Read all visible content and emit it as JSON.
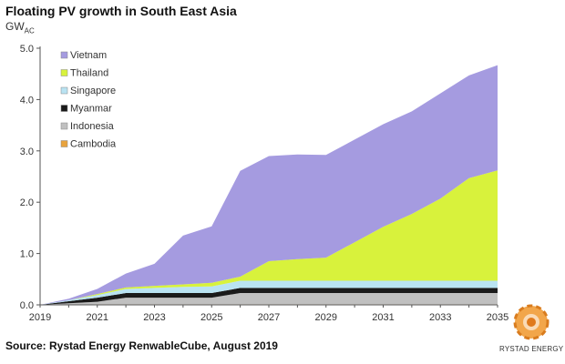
{
  "title": "Floating PV growth in South East Asia",
  "unit": {
    "main": "GW",
    "sub": "AC"
  },
  "source": "Source: Rystad Energy RenwableCube, August 2019",
  "brand": "RYSTAD ENERGY",
  "chart_data": {
    "type": "area",
    "stacked": true,
    "x": [
      2019,
      2020,
      2021,
      2022,
      2023,
      2024,
      2025,
      2026,
      2027,
      2028,
      2029,
      2030,
      2031,
      2032,
      2033,
      2034,
      2035
    ],
    "x_tick_labels": [
      "2019",
      "2021",
      "2023",
      "2025",
      "2027",
      "2029",
      "2031",
      "2033",
      "2035"
    ],
    "ylim": [
      0,
      5.0
    ],
    "y_ticks": [
      "0.0",
      "1.0",
      "2.0",
      "3.0",
      "4.0",
      "5.0"
    ],
    "grid": false,
    "legend_position": "top-left",
    "series": [
      {
        "name": "Cambodia",
        "color": "#E8A33D",
        "values": [
          0,
          0,
          0.01,
          0.01,
          0.01,
          0.01,
          0.01,
          0.01,
          0.01,
          0.01,
          0.01,
          0.01,
          0.01,
          0.01,
          0.01,
          0.01,
          0.01
        ]
      },
      {
        "name": "Indonesia",
        "color": "#C0C0C0",
        "values": [
          0,
          0.03,
          0.05,
          0.13,
          0.13,
          0.13,
          0.13,
          0.22,
          0.22,
          0.22,
          0.22,
          0.22,
          0.22,
          0.22,
          0.22,
          0.22,
          0.22
        ]
      },
      {
        "name": "Myanmar",
        "color": "#1A1A1A",
        "values": [
          0,
          0.04,
          0.08,
          0.09,
          0.09,
          0.09,
          0.09,
          0.1,
          0.1,
          0.1,
          0.1,
          0.1,
          0.1,
          0.1,
          0.1,
          0.1,
          0.1
        ]
      },
      {
        "name": "Singapore",
        "color": "#B9E3F2",
        "values": [
          0,
          0.02,
          0.05,
          0.08,
          0.1,
          0.12,
          0.13,
          0.14,
          0.14,
          0.14,
          0.14,
          0.14,
          0.14,
          0.14,
          0.14,
          0.14,
          0.14
        ]
      },
      {
        "name": "Thailand",
        "color": "#D8F23C",
        "values": [
          0,
          0,
          0.02,
          0.03,
          0.04,
          0.05,
          0.07,
          0.08,
          0.38,
          0.42,
          0.45,
          0.75,
          1.05,
          1.3,
          1.6,
          2.0,
          2.15
        ]
      },
      {
        "name": "Vietnam",
        "color": "#A59BE0",
        "values": [
          0,
          0.03,
          0.1,
          0.27,
          0.43,
          0.95,
          1.1,
          2.06,
          2.05,
          2.04,
          2.0,
          2.0,
          2.0,
          2.0,
          2.05,
          2.0,
          2.05
        ]
      }
    ]
  }
}
